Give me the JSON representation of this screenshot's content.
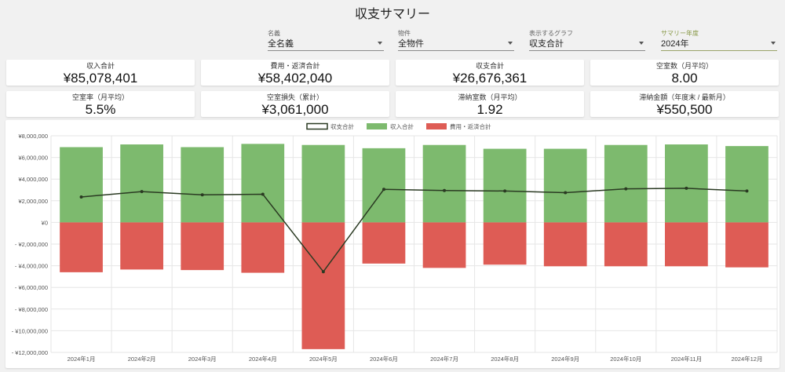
{
  "page": {
    "title": "収支サマリー"
  },
  "filters": [
    {
      "label": "名義",
      "value": "全名義"
    },
    {
      "label": "物件",
      "value": "全物件"
    },
    {
      "label": "表示するグラフ",
      "value": "収支合計"
    },
    {
      "label": "サマリー年度",
      "value": "2024年"
    }
  ],
  "cards": [
    {
      "label": "収入合計",
      "value": "¥85,078,401"
    },
    {
      "label": "費用・返済合計",
      "value": "¥58,402,040"
    },
    {
      "label": "収支合計",
      "value": "¥26,676,361"
    },
    {
      "label": "空室数（月平均）",
      "value": "8.00"
    },
    {
      "label": "空室率（月平均）",
      "value": "5.5%"
    },
    {
      "label": "空室損失（累計）",
      "value": "¥3,061,000"
    },
    {
      "label": "滞納室数（月平均）",
      "value": "1.92"
    },
    {
      "label": "滞納金額（年度末 / 最新月）",
      "value": "¥550,500"
    }
  ],
  "colors": {
    "income": "#7dba6e",
    "expense": "#de5c55",
    "net": "#2a3a22"
  },
  "chart_data": {
    "type": "bar",
    "stacked": true,
    "categories": [
      "2024年1月",
      "2024年2月",
      "2024年3月",
      "2024年4月",
      "2024年5月",
      "2024年6月",
      "2024年7月",
      "2024年8月",
      "2024年9月",
      "2024年10月",
      "2024年11月",
      "2024年12月"
    ],
    "series": [
      {
        "name": "収支合計",
        "type": "line",
        "values": [
          2350000,
          2850000,
          2550000,
          2600000,
          -4550000,
          3050000,
          2950000,
          2900000,
          2750000,
          3100000,
          3150000,
          2900000
        ]
      },
      {
        "name": "収入合計",
        "type": "bar",
        "values": [
          6950000,
          7200000,
          6950000,
          7250000,
          7150000,
          6850000,
          7150000,
          6800000,
          6800000,
          7150000,
          7200000,
          7050000
        ]
      },
      {
        "name": "費用・返済合計",
        "type": "bar",
        "values": [
          -4600000,
          -4350000,
          -4400000,
          -4650000,
          -11700000,
          -3800000,
          -4200000,
          -3900000,
          -4050000,
          -4050000,
          -4050000,
          -4150000
        ]
      }
    ],
    "ylim": [
      -12000000,
      8000000
    ],
    "yticks": [
      8000000,
      6000000,
      4000000,
      2000000,
      0,
      -2000000,
      -4000000,
      -6000000,
      -8000000,
      -10000000,
      -12000000
    ],
    "ytick_labels": [
      "¥8,000,000",
      "¥6,000,000",
      "¥4,000,000",
      "¥2,000,000",
      "¥0",
      "- ¥2,000,000",
      "- ¥4,000,000",
      "- ¥6,000,000",
      "- ¥8,000,000",
      "- ¥10,000,000",
      "- ¥12,000,000"
    ],
    "legend_position": "top-center",
    "grid": true
  }
}
